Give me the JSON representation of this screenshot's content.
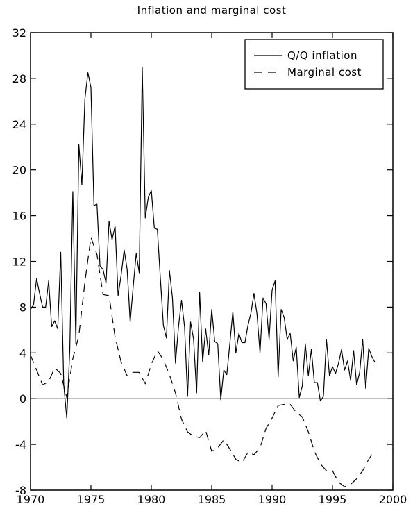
{
  "chart_data": {
    "type": "line",
    "title": "Inflation and marginal cost",
    "xlabel": "",
    "ylabel": "",
    "xlim": [
      1970,
      2000
    ],
    "ylim": [
      -8,
      32
    ],
    "xticks": [
      "1970",
      "1975",
      "1980",
      "1985",
      "1990",
      "1995",
      "2000"
    ],
    "yticks": [
      "-8",
      "-4",
      "0",
      "4",
      "8",
      "12",
      "16",
      "20",
      "24",
      "28",
      "32"
    ],
    "zero_line": true,
    "grid": false,
    "legend_position": "top-right",
    "series": [
      {
        "name": "Q/Q inflation",
        "style": "solid",
        "x": [
          1970.0,
          1970.25,
          1970.5,
          1970.75,
          1971.0,
          1971.25,
          1971.5,
          1971.75,
          1972.0,
          1972.25,
          1972.5,
          1972.75,
          1973.0,
          1973.25,
          1973.5,
          1973.75,
          1974.0,
          1974.25,
          1974.5,
          1974.75,
          1975.0,
          1975.25,
          1975.5,
          1975.75,
          1976.0,
          1976.25,
          1976.5,
          1976.75,
          1977.0,
          1977.25,
          1977.5,
          1977.75,
          1978.0,
          1978.25,
          1978.5,
          1978.75,
          1979.0,
          1979.25,
          1979.5,
          1979.75,
          1980.0,
          1980.25,
          1980.5,
          1980.75,
          1981.0,
          1981.25,
          1981.5,
          1981.75,
          1982.0,
          1982.25,
          1982.5,
          1982.75,
          1983.0,
          1983.25,
          1983.5,
          1983.75,
          1984.0,
          1984.25,
          1984.5,
          1984.75,
          1985.0,
          1985.25,
          1985.5,
          1985.75,
          1986.0,
          1986.25,
          1986.5,
          1986.75,
          1987.0,
          1987.25,
          1987.5,
          1987.75,
          1988.0,
          1988.25,
          1988.5,
          1988.75,
          1989.0,
          1989.25,
          1989.5,
          1989.75,
          1990.0,
          1990.25,
          1990.5,
          1990.75,
          1991.0,
          1991.25,
          1991.5,
          1991.75,
          1992.0,
          1992.25,
          1992.5,
          1992.75,
          1993.0,
          1993.25,
          1993.5,
          1993.75,
          1994.0,
          1994.25,
          1994.5,
          1994.75,
          1995.0,
          1995.25,
          1995.5,
          1995.75,
          1996.0,
          1996.25,
          1996.5,
          1996.75,
          1997.0,
          1997.25,
          1997.5,
          1997.75,
          1998.0,
          1998.25,
          1998.5
        ],
        "y": [
          7.8,
          8.2,
          10.5,
          9.2,
          8.0,
          8.0,
          10.3,
          6.3,
          6.8,
          6.1,
          12.8,
          1.2,
          -1.7,
          4.3,
          18.1,
          4.8,
          22.2,
          18.7,
          26.2,
          28.5,
          27.2,
          16.9,
          17.0,
          11.6,
          11.3,
          10.1,
          15.5,
          13.9,
          15.1,
          9.0,
          10.8,
          13.0,
          11.3,
          6.7,
          9.8,
          12.7,
          11.0,
          29.0,
          15.8,
          17.6,
          18.2,
          14.9,
          14.8,
          10.5,
          6.4,
          5.3,
          11.2,
          8.8,
          3.1,
          6.3,
          8.6,
          6.3,
          0.2,
          6.7,
          5.2,
          0.5,
          9.3,
          3.2,
          6.1,
          3.8,
          7.8,
          5.0,
          4.8,
          -0.1,
          2.5,
          2.1,
          4.8,
          7.6,
          4.0,
          5.7,
          4.9,
          4.9,
          6.4,
          7.5,
          9.2,
          7.4,
          4.0,
          8.8,
          8.3,
          5.2,
          9.5,
          10.3,
          1.9,
          7.8,
          7.1,
          5.2,
          5.7,
          3.3,
          4.5,
          0.1,
          1.1,
          4.8,
          2.0,
          4.3,
          1.4,
          1.4,
          -0.2,
          0.2,
          5.2,
          2.0,
          2.8,
          2.2,
          3.1,
          4.3,
          2.5,
          3.3,
          1.6,
          4.2,
          1.2,
          2.3,
          5.2,
          0.9,
          4.4,
          3.7,
          3.2
        ]
      },
      {
        "name": "Marginal cost",
        "style": "dashed",
        "x": [
          1970.0,
          1970.5,
          1971.0,
          1971.5,
          1972.0,
          1972.5,
          1973.0,
          1973.5,
          1974.0,
          1974.5,
          1975.0,
          1975.5,
          1976.0,
          1976.5,
          1977.0,
          1977.5,
          1978.0,
          1978.5,
          1979.0,
          1979.5,
          1980.0,
          1980.5,
          1981.0,
          1981.5,
          1982.0,
          1982.5,
          1983.0,
          1983.5,
          1984.0,
          1984.5,
          1985.0,
          1985.5,
          1986.0,
          1986.5,
          1987.0,
          1987.5,
          1988.0,
          1988.5,
          1989.0,
          1989.5,
          1990.0,
          1990.5,
          1991.0,
          1991.5,
          1992.0,
          1992.5,
          1993.0,
          1993.5,
          1994.0,
          1994.5,
          1995.0,
          1995.5,
          1996.0,
          1996.5,
          1997.0,
          1997.5,
          1998.0,
          1998.5
        ],
        "y": [
          3.8,
          2.5,
          1.2,
          1.5,
          2.7,
          2.2,
          0.1,
          3.5,
          5.5,
          10.2,
          14.1,
          12.6,
          9.1,
          9.0,
          5.4,
          3.2,
          2.0,
          2.3,
          2.3,
          1.3,
          3.0,
          4.2,
          3.4,
          2.1,
          0.5,
          -1.8,
          -2.9,
          -3.3,
          -3.4,
          -2.8,
          -4.6,
          -4.3,
          -3.6,
          -4.4,
          -5.3,
          -5.6,
          -4.7,
          -4.9,
          -4.3,
          -2.6,
          -1.7,
          -0.6,
          -0.5,
          -0.5,
          -1.2,
          -1.6,
          -2.9,
          -4.6,
          -5.7,
          -6.3,
          -6.3,
          -7.3,
          -7.7,
          -7.5,
          -7.0,
          -6.3,
          -5.3,
          -4.5
        ]
      }
    ]
  }
}
